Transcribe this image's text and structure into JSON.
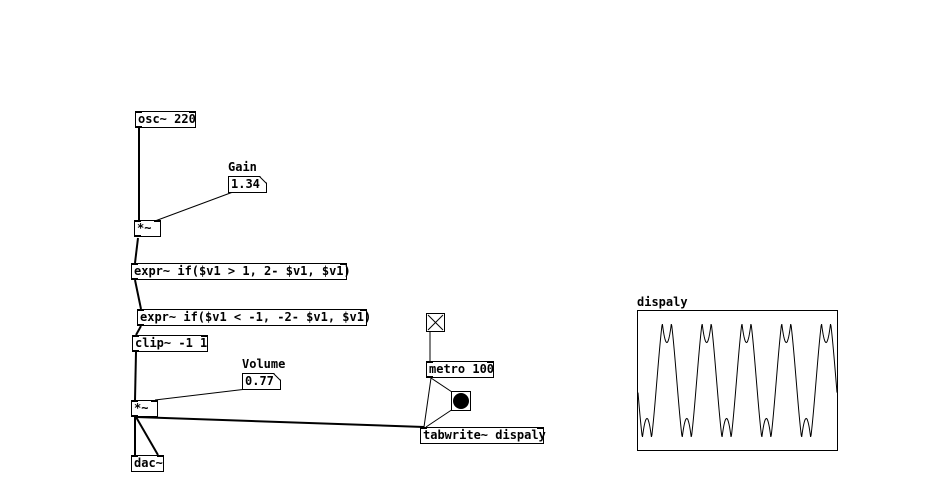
{
  "patch": {
    "objects": {
      "osc": "osc~ 220",
      "mul1": "*~",
      "expr1": "expr~ if($v1 > 1, 2- $v1, $v1)",
      "expr2": "expr~ if($v1 < -1, -2- $v1, $v1)",
      "clip": "clip~ -1 1",
      "mul2": "*~",
      "dac": "dac~",
      "metro": "metro 100",
      "tabwrite": "tabwrite~ dispaly"
    },
    "gain": {
      "label": "Gain",
      "value": "1.34"
    },
    "volume": {
      "label": "Volume",
      "value": "0.77"
    },
    "toggle": {
      "state": "on"
    },
    "graph": {
      "name": "dispaly",
      "waveform": "folded-sine",
      "cycles": 5,
      "y_range": [
        -1,
        1
      ]
    }
  }
}
